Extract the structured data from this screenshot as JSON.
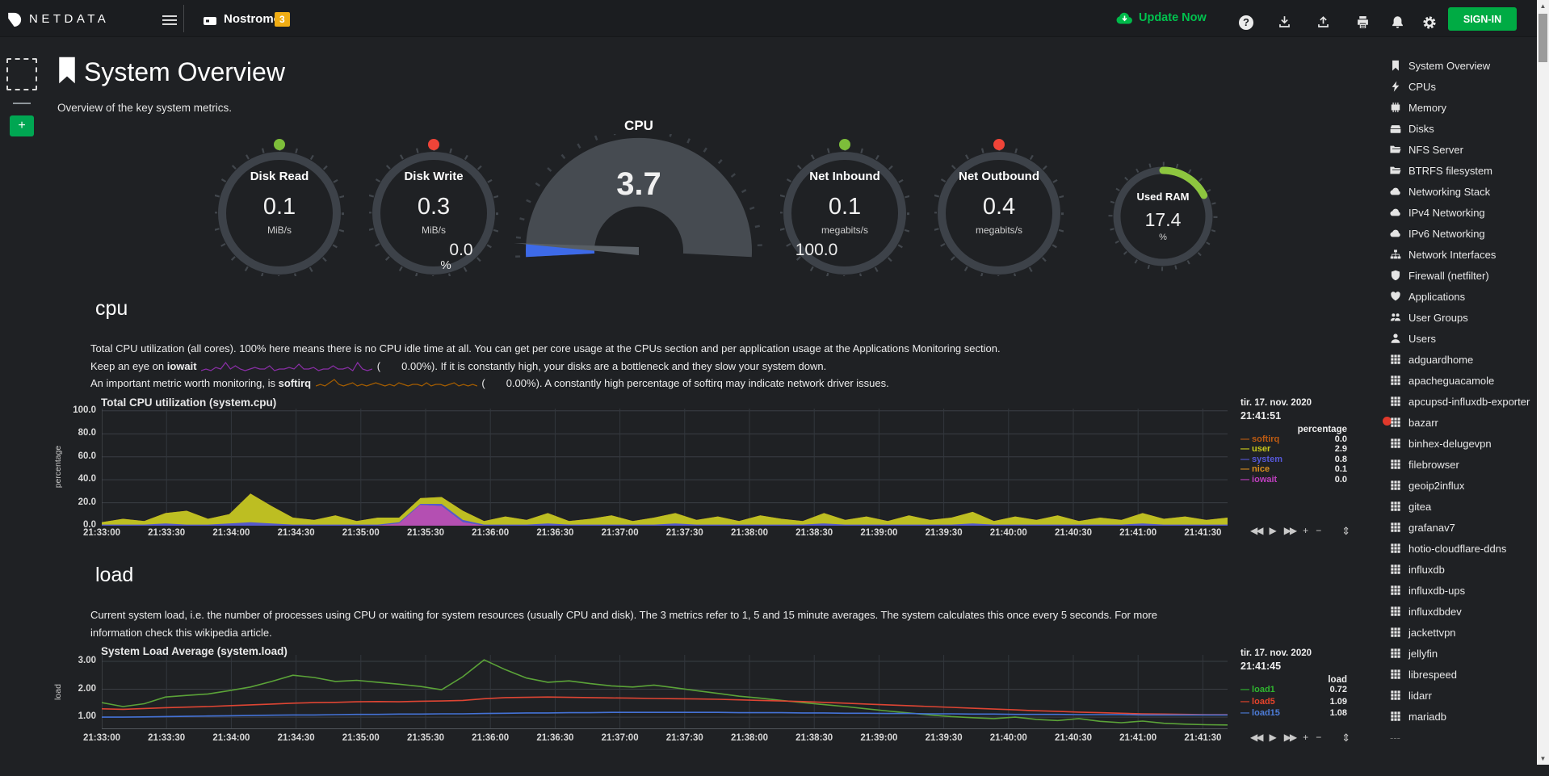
{
  "navbar": {
    "brand": "NETDATA",
    "node_name": "Nostromo",
    "badge": "3",
    "update_now": "Update Now",
    "help": "?",
    "signin": "SIGN-IN"
  },
  "header": {
    "title": "System Overview",
    "subtitle": "Overview of the key system metrics.",
    "add_button": "+"
  },
  "gauges": {
    "disk_read": {
      "title": "Disk Read",
      "value": "0.1",
      "unit": "MiB/s",
      "dot_color": "#7DBE3A"
    },
    "disk_write": {
      "title": "Disk Write",
      "value": "0.3",
      "unit": "MiB/s",
      "dot_color": "#EF4438"
    },
    "cpu": {
      "title": "CPU",
      "value": "3.7",
      "min": "0.0",
      "max": "100.0",
      "unit": "%",
      "percent": 3.7,
      "accent": "#3D6AE8"
    },
    "net_inbound": {
      "title": "Net Inbound",
      "value": "0.1",
      "unit": "megabits/s",
      "dot_color": "#7DBE3A"
    },
    "net_outbound": {
      "title": "Net Outbound",
      "value": "0.4",
      "unit": "megabits/s",
      "dot_color": "#EF4438"
    },
    "used_ram": {
      "title": "Used RAM",
      "value": "17.4",
      "unit": "%",
      "percent": 17.4,
      "arc_color": "#8DC63F"
    }
  },
  "cpu_section": {
    "heading": "cpu",
    "line1": "Total CPU utilization (all cores). 100% here means there is no CPU idle time at all. You can get per core usage at the CPUs section and per application usage at the Applications Monitoring section.",
    "line2": {
      "pre": "Keep an eye on ",
      "bold": "iowait",
      "paren": "(",
      "value": "0.00%",
      "post": "). If it is constantly high, your disks are a bottleneck and they slow your system down."
    },
    "line3": {
      "pre": "An important metric worth monitoring, is ",
      "bold": "softirq",
      "paren": "(",
      "value": "0.00%",
      "post": "). A constantly high percentage of softirq may indicate network driver issues."
    },
    "spark_iowait": {
      "color": "#8B2FA8",
      "data": [
        0,
        1,
        0,
        2,
        1,
        5,
        1,
        3,
        1,
        0,
        1,
        2,
        1,
        1,
        3,
        0,
        1,
        1,
        2,
        1,
        4,
        1,
        1,
        2,
        0,
        1,
        1,
        3,
        1,
        1,
        2,
        0,
        5,
        1,
        0,
        1
      ]
    },
    "spark_softirq": {
      "color": "#A65E00",
      "data": [
        1,
        2,
        1,
        3,
        5,
        2,
        1,
        2,
        3,
        1,
        2,
        1,
        2,
        3,
        2,
        1,
        2,
        1,
        3,
        2,
        1,
        2,
        2,
        1,
        3,
        1,
        2,
        2,
        1,
        2,
        3,
        1,
        2,
        1,
        2,
        1
      ]
    }
  },
  "load_section": {
    "heading": "load",
    "text": "Current system load, i.e. the number of processes using CPU or waiting for system resources (usually CPU and disk). The 3 metrics refer to 1, 5 and 15 minute averages. The system calculates this once every 5 seconds. For more information check this wikipedia article."
  },
  "toolbar": {
    "skip_back": "◀◀",
    "play": "▶",
    "skip_fwd": "▶▶",
    "zoom_in": "+",
    "zoom_out": "−",
    "resize": "⇕"
  },
  "chart_data": [
    {
      "type": "area-stacked",
      "name": "cpu",
      "title": "Total CPU utilization (system.cpu)",
      "ylabel": "percentage",
      "ylim": [
        0,
        102
      ],
      "y_ticks": [
        0,
        20,
        40,
        60,
        80,
        100
      ],
      "y_fmt": 1,
      "x_labels": [
        "21:33:00",
        "21:33:30",
        "21:34:00",
        "21:34:30",
        "21:35:00",
        "21:35:30",
        "21:36:00",
        "21:36:30",
        "21:37:00",
        "21:37:30",
        "21:38:00",
        "21:38:30",
        "21:39:00",
        "21:39:30",
        "21:40:00",
        "21:40:30",
        "21:41:00",
        "21:41:30"
      ],
      "legend": {
        "date": "tir. 17. nov. 2020",
        "time": "21:41:51",
        "unit": "percentage"
      },
      "stack_order": [
        "iowait",
        "nice",
        "system",
        "user",
        "softirq"
      ],
      "series": [
        {
          "name": "softirq",
          "color": "#BF5B11",
          "fill": "#BF5B11",
          "value": "0.0",
          "data": []
        },
        {
          "name": "user",
          "color": "#C9C91B",
          "fill": "#BDBE22",
          "value": "2.9",
          "data": [
            2,
            5,
            3,
            9,
            12,
            5,
            8,
            25,
            15,
            6,
            4,
            8,
            3,
            6,
            4,
            5,
            6,
            8,
            3,
            7,
            4,
            9,
            3,
            5,
            8,
            3,
            6,
            9,
            4,
            7,
            3,
            8,
            5,
            3,
            9,
            4,
            7,
            3,
            8,
            4,
            6,
            10,
            3,
            7,
            4,
            8,
            3,
            6,
            4,
            9,
            5,
            7,
            4,
            6
          ]
        },
        {
          "name": "system",
          "color": "#5658D8",
          "fill": "#5659CB",
          "value": "0.8",
          "data": [
            1,
            1,
            1,
            2,
            1,
            1,
            2,
            3,
            2,
            1,
            1,
            1,
            1,
            1,
            1,
            1,
            2,
            2,
            1,
            1,
            1,
            2,
            1,
            1,
            1,
            1,
            1,
            2,
            1,
            1,
            1,
            1,
            1,
            1,
            2,
            1,
            1,
            1,
            1,
            1,
            1,
            2,
            1,
            1,
            1,
            1,
            1,
            1,
            1,
            2,
            1,
            1,
            1,
            1
          ]
        },
        {
          "name": "nice",
          "color": "#D98E1F",
          "fill": "#D98E1F",
          "value": "0.1",
          "data": []
        },
        {
          "name": "iowait",
          "color": "#BE3FBE",
          "fill": "#B44FB2",
          "value": "0.0",
          "data": [
            0,
            0,
            0,
            0,
            0,
            0,
            0,
            0,
            0,
            0,
            0,
            0,
            0,
            0,
            2,
            18,
            17,
            3,
            0,
            0,
            0,
            0,
            0,
            0,
            0,
            0,
            0,
            0,
            0,
            0,
            0,
            0,
            0,
            0,
            0,
            0,
            0,
            0,
            0,
            0,
            0,
            0,
            0,
            0,
            0,
            0,
            0,
            0,
            0,
            0,
            0,
            0,
            0,
            0
          ]
        }
      ]
    },
    {
      "type": "line",
      "name": "load",
      "title": "System Load Average (system.load)",
      "ylabel": "load",
      "ylim": [
        0.57,
        3.23
      ],
      "y_ticks": [
        1,
        2,
        3
      ],
      "y_fmt": 2,
      "x_labels": [
        "21:33:00",
        "21:33:30",
        "21:34:00",
        "21:34:30",
        "21:35:00",
        "21:35:30",
        "21:36:00",
        "21:36:30",
        "21:37:00",
        "21:37:30",
        "21:38:00",
        "21:38:30",
        "21:39:00",
        "21:39:30",
        "21:40:00",
        "21:40:30",
        "21:41:00",
        "21:41:30"
      ],
      "legend": {
        "date": "tir. 17. nov. 2020",
        "time": "21:41:45",
        "unit": "load"
      },
      "series": [
        {
          "name": "load1",
          "color": "#2FB62F",
          "line": "#5BA338",
          "value": "0.72",
          "data": [
            1.52,
            1.38,
            1.48,
            1.72,
            1.78,
            1.83,
            1.95,
            2.08,
            2.28,
            2.5,
            2.42,
            2.28,
            2.32,
            2.25,
            2.18,
            2.1,
            1.98,
            2.45,
            3.05,
            2.7,
            2.4,
            2.25,
            2.3,
            2.2,
            2.12,
            2.08,
            2.15,
            2.05,
            1.95,
            1.85,
            1.75,
            1.68,
            1.6,
            1.52,
            1.45,
            1.38,
            1.3,
            1.22,
            1.15,
            1.08,
            1.02,
            0.98,
            0.95,
            1.0,
            0.92,
            0.88,
            0.95,
            0.85,
            0.8,
            0.86,
            0.78,
            0.75,
            0.73,
            0.72
          ]
        },
        {
          "name": "load5",
          "color": "#E6432B",
          "line": "#DE4533",
          "value": "1.09",
          "data": [
            1.3,
            1.28,
            1.31,
            1.34,
            1.36,
            1.38,
            1.41,
            1.44,
            1.47,
            1.5,
            1.52,
            1.53,
            1.55,
            1.56,
            1.55,
            1.57,
            1.58,
            1.6,
            1.66,
            1.7,
            1.71,
            1.72,
            1.71,
            1.7,
            1.69,
            1.68,
            1.67,
            1.66,
            1.65,
            1.64,
            1.62,
            1.6,
            1.58,
            1.56,
            1.53,
            1.5,
            1.47,
            1.44,
            1.41,
            1.38,
            1.35,
            1.32,
            1.29,
            1.26,
            1.23,
            1.21,
            1.18,
            1.16,
            1.14,
            1.12,
            1.11,
            1.1,
            1.09,
            1.09
          ]
        },
        {
          "name": "load15",
          "color": "#4D7DD9",
          "line": "#4472D6",
          "value": "1.08",
          "data": [
            1.0,
            1.0,
            1.01,
            1.02,
            1.03,
            1.04,
            1.05,
            1.06,
            1.07,
            1.08,
            1.08,
            1.09,
            1.1,
            1.1,
            1.11,
            1.11,
            1.12,
            1.12,
            1.13,
            1.14,
            1.15,
            1.15,
            1.16,
            1.16,
            1.17,
            1.17,
            1.17,
            1.17,
            1.17,
            1.17,
            1.16,
            1.16,
            1.16,
            1.15,
            1.15,
            1.14,
            1.14,
            1.13,
            1.13,
            1.12,
            1.12,
            1.11,
            1.11,
            1.1,
            1.1,
            1.1,
            1.09,
            1.09,
            1.09,
            1.08,
            1.08,
            1.08,
            1.08,
            1.08
          ]
        }
      ]
    }
  ],
  "sidebar": {
    "ghost": "---",
    "items": [
      {
        "icon": "bookmark",
        "label": "System Overview"
      },
      {
        "icon": "bolt",
        "label": "CPUs"
      },
      {
        "icon": "memory",
        "label": "Memory"
      },
      {
        "icon": "hdd",
        "label": "Disks"
      },
      {
        "icon": "folder",
        "label": "NFS Server"
      },
      {
        "icon": "folder",
        "label": "BTRFS filesystem"
      },
      {
        "icon": "cloud",
        "label": "Networking Stack"
      },
      {
        "icon": "cloud",
        "label": "IPv4 Networking"
      },
      {
        "icon": "cloud",
        "label": "IPv6 Networking"
      },
      {
        "icon": "sitemap",
        "label": "Network Interfaces"
      },
      {
        "icon": "shield",
        "label": "Firewall (netfilter)"
      },
      {
        "icon": "heartbeat",
        "label": "Applications"
      },
      {
        "icon": "users",
        "label": "User Groups"
      },
      {
        "icon": "user",
        "label": "Users"
      },
      {
        "icon": "grid",
        "label": "adguardhome"
      },
      {
        "icon": "grid",
        "label": "apacheguacamole"
      },
      {
        "icon": "grid",
        "label": "apcupsd-influxdb-exporter"
      },
      {
        "icon": "grid",
        "label": "bazarr"
      },
      {
        "icon": "grid",
        "label": "binhex-delugevpn"
      },
      {
        "icon": "grid",
        "label": "filebrowser"
      },
      {
        "icon": "grid",
        "label": "geoip2influx"
      },
      {
        "icon": "grid",
        "label": "gitea"
      },
      {
        "icon": "grid",
        "label": "grafanav7"
      },
      {
        "icon": "grid",
        "label": "hotio-cloudflare-ddns"
      },
      {
        "icon": "grid",
        "label": "influxdb"
      },
      {
        "icon": "grid",
        "label": "influxdb-ups"
      },
      {
        "icon": "grid",
        "label": "influxdbdev"
      },
      {
        "icon": "grid",
        "label": "jackettvpn"
      },
      {
        "icon": "grid",
        "label": "jellyfin"
      },
      {
        "icon": "grid",
        "label": "librespeed"
      },
      {
        "icon": "grid",
        "label": "lidarr"
      },
      {
        "icon": "grid",
        "label": "mariadb"
      }
    ]
  }
}
